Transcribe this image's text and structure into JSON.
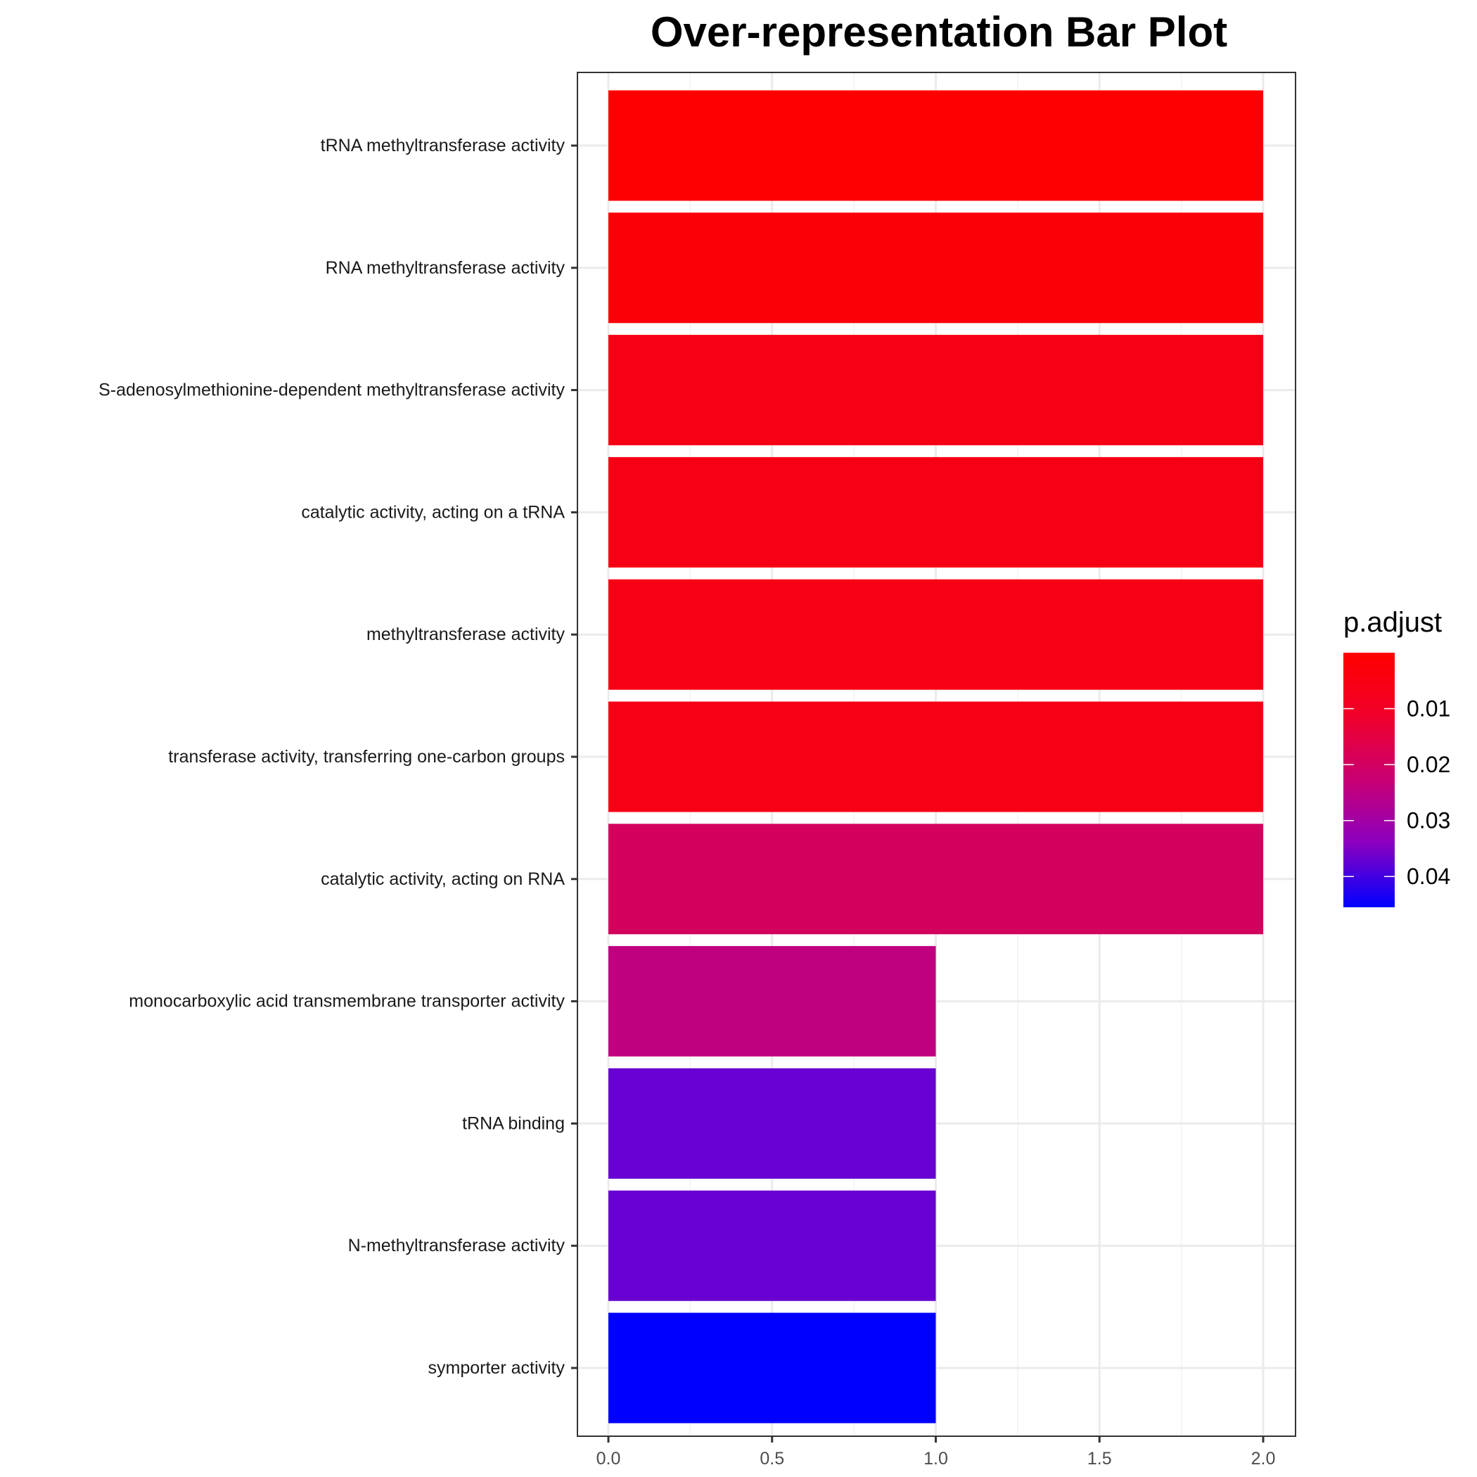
{
  "chart_data": {
    "type": "bar",
    "orientation": "horizontal",
    "title": "Over-representation Bar Plot",
    "xlabel": "",
    "ylabel": "",
    "xlim": [
      0,
      2
    ],
    "x_ticks": [
      "0.0",
      "0.5",
      "1.0",
      "1.5",
      "2.0"
    ],
    "x_tick_values": [
      0,
      0.5,
      1,
      1.5,
      2
    ],
    "grid": true,
    "categories": [
      "tRNA methyltransferase activity",
      "RNA methyltransferase activity",
      "S-adenosylmethionine-dependent methyltransferase activity",
      "catalytic activity, acting on a tRNA",
      "methyltransferase activity",
      "transferase activity, transferring one-carbon groups",
      "catalytic activity, acting on RNA",
      "monocarboxylic acid transmembrane transporter activity",
      "tRNA binding",
      "N-methyltransferase activity",
      "symporter activity"
    ],
    "values": [
      2,
      2,
      2,
      2,
      2,
      2,
      2,
      1,
      1,
      1,
      1
    ],
    "p_adjust": [
      0.0005,
      0.002,
      0.006,
      0.006,
      0.006,
      0.006,
      0.0195,
      0.0245,
      0.037,
      0.037,
      0.0455
    ],
    "color_by": {
      "title": "p.adjust",
      "range": [
        0,
        0.0455
      ],
      "low_color": "#FF0000",
      "high_color": "#0000FF",
      "ticks": [
        "0.01",
        "0.02",
        "0.03",
        "0.04"
      ],
      "tick_values": [
        0.01,
        0.02,
        0.03,
        0.04
      ]
    },
    "legend_position": "right"
  }
}
